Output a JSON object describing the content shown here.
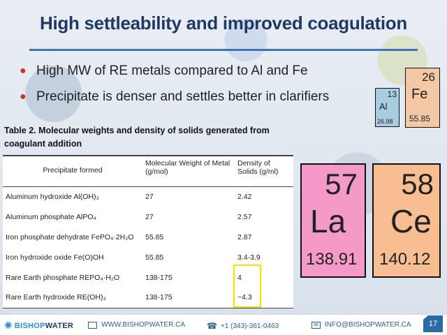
{
  "title": "High settleability and improved coagulation",
  "bullets": [
    "High MW of RE metals compared to Al and Fe",
    "Precipitate is denser and settles better in clarifiers"
  ],
  "elements": {
    "al": {
      "number": "13",
      "symbol": "Al",
      "weight": "26.98"
    },
    "fe": {
      "number": "26",
      "symbol": "Fe",
      "weight": "55.85"
    },
    "la": {
      "number": "57",
      "symbol": "La",
      "weight": "138.91"
    },
    "ce": {
      "number": "58",
      "symbol": "Ce",
      "weight": "140.12"
    }
  },
  "table": {
    "caption": "Table 2. Molecular weights and density of solids generated from coagulant addition",
    "headers": [
      "Precipitate formed",
      "Molecular Weight of Metal (g/mol)",
      "Density of Solids (g/ml)"
    ],
    "rows": [
      [
        "Aluminum hydroxide Al(OH)₃",
        "27",
        "2.42"
      ],
      [
        "Aluminum phosphate AlPO₄",
        "27",
        "2.57"
      ],
      [
        "Iron phosphate dehydrate FePO₄·2H₂O",
        "55.85",
        "2.87"
      ],
      [
        "Iron hydroxide oxide Fe(O)OH",
        "55.85",
        "3.4-3.9"
      ],
      [
        "Rare Earth phosphate REPO₄·H₂O",
        "138-175",
        "4"
      ],
      [
        "Rare Earth hydroxide RE(OH)₃",
        "138-175",
        "~4.3"
      ]
    ]
  },
  "footer": {
    "brand_left": "BISHOP",
    "brand_right": "WATER",
    "website": "WWW.BISHOPWATER.CA",
    "phone": "+1 (343)-361-0463",
    "email": "INFO@BISHOPWATER.CA",
    "page": "17"
  },
  "colors": {
    "title": "#1f3864",
    "bullet": "#c0392b",
    "highlight": "#f2e600",
    "la": "#f59ac8",
    "ce": "#f8bd90"
  }
}
